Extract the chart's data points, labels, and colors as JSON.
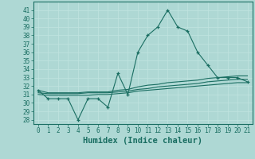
{
  "x": [
    0,
    1,
    2,
    3,
    4,
    5,
    6,
    7,
    8,
    9,
    10,
    11,
    12,
    13,
    14,
    15,
    16,
    17,
    18,
    19,
    20,
    21
  ],
  "y_main": [
    31.5,
    30.5,
    30.5,
    30.5,
    28.0,
    30.5,
    30.5,
    29.5,
    33.5,
    31.0,
    36.0,
    38.0,
    39.0,
    41.0,
    39.0,
    38.5,
    36.0,
    34.5,
    33.0,
    33.0,
    33.0,
    32.5
  ],
  "y_line2": [
    31.0,
    30.9,
    30.9,
    30.9,
    30.9,
    30.9,
    31.0,
    31.0,
    31.1,
    31.2,
    31.4,
    31.5,
    31.6,
    31.7,
    31.8,
    31.9,
    32.0,
    32.1,
    32.2,
    32.3,
    32.4,
    32.4
  ],
  "y_line3": [
    31.2,
    31.1,
    31.1,
    31.1,
    31.1,
    31.2,
    31.2,
    31.2,
    31.3,
    31.4,
    31.6,
    31.7,
    31.9,
    32.0,
    32.1,
    32.2,
    32.3,
    32.5,
    32.6,
    32.7,
    32.8,
    32.8
  ],
  "y_line4": [
    31.5,
    31.2,
    31.2,
    31.2,
    31.2,
    31.3,
    31.3,
    31.3,
    31.5,
    31.6,
    31.9,
    32.1,
    32.2,
    32.4,
    32.5,
    32.6,
    32.7,
    32.9,
    33.0,
    33.1,
    33.2,
    33.2
  ],
  "ylim": [
    27.5,
    42
  ],
  "xlim": [
    -0.5,
    21.5
  ],
  "yticks": [
    28,
    29,
    30,
    31,
    32,
    33,
    34,
    35,
    36,
    37,
    38,
    39,
    40,
    41
  ],
  "xticks": [
    0,
    1,
    2,
    3,
    4,
    5,
    6,
    7,
    8,
    9,
    10,
    11,
    12,
    13,
    14,
    15,
    16,
    17,
    18,
    19,
    20,
    21
  ],
  "xlabel": "Humidex (Indice chaleur)",
  "line_color": "#1a6e62",
  "bg_color": "#aed8d4",
  "grid_color": "#c2e4e0",
  "tick_fontsize": 5.5,
  "xlabel_fontsize": 7.5,
  "marker": "+"
}
